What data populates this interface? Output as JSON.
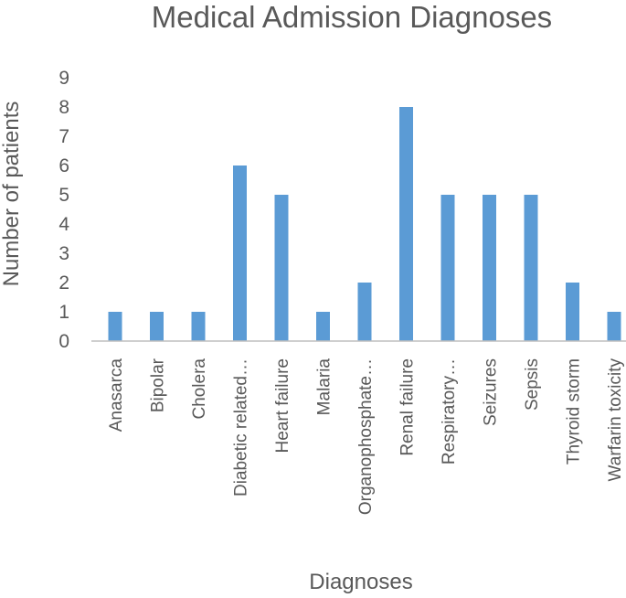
{
  "chart_data": {
    "type": "bar",
    "title": "Medical Admission Diagnoses",
    "xlabel": "Diagnoses",
    "ylabel": "Number of patients",
    "categories": [
      "Anasarca",
      "Bipolar",
      "Cholera",
      "Diabetic related…",
      "Heart failure",
      "Malaria",
      "Organophosphate…",
      "Renal failure",
      "Respiratory…",
      "Seizures",
      "Sepsis",
      "Thyroid storm",
      "Warfarin toxicity"
    ],
    "values": [
      1,
      1,
      1,
      6,
      5,
      1,
      2,
      8,
      5,
      5,
      5,
      2,
      1
    ],
    "ylim": [
      0,
      9
    ],
    "yticks": [
      "0",
      "1",
      "2",
      "3",
      "4",
      "5",
      "6",
      "7",
      "8",
      "9"
    ],
    "grid": false,
    "legend": "none",
    "bar_color": "#5B9BD5",
    "axis_color": "#BFBFBF"
  }
}
